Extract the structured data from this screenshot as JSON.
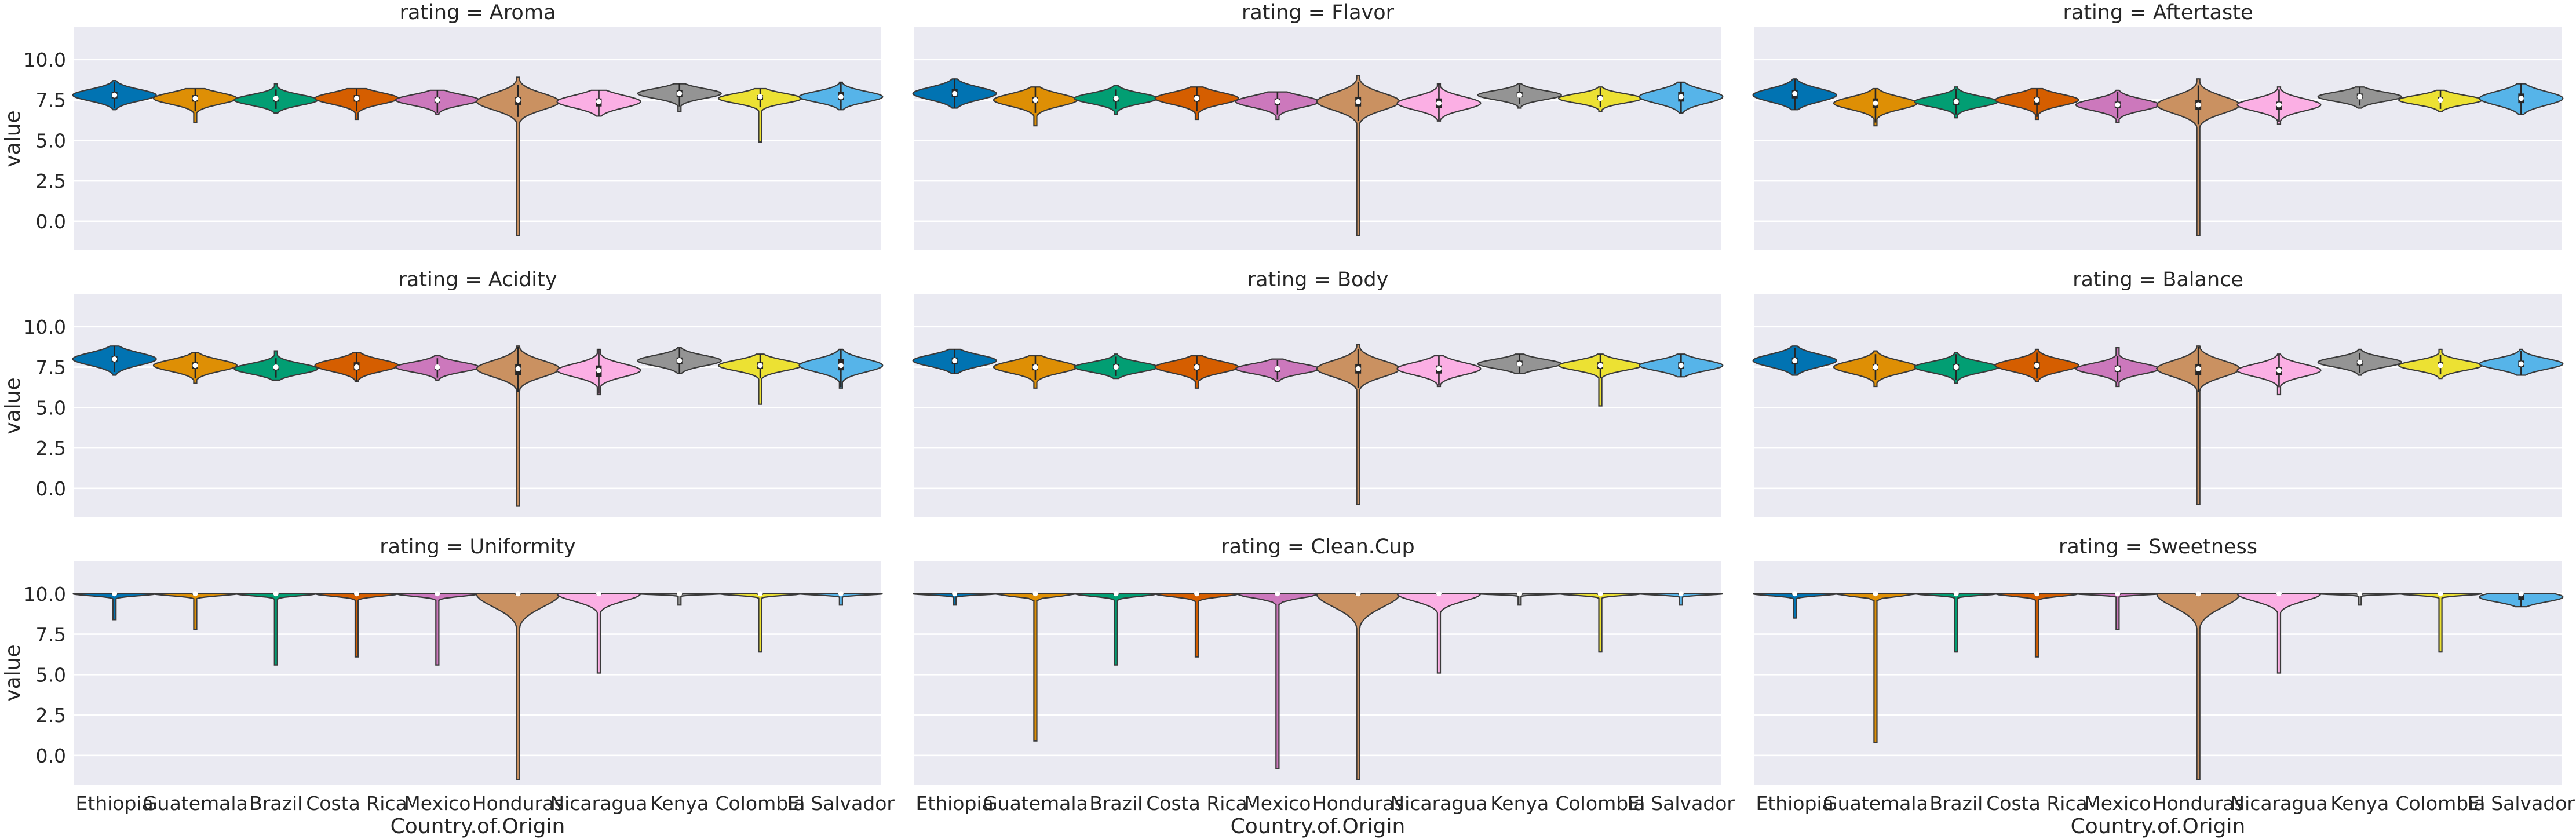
{
  "chart_data": {
    "type": "violin",
    "facet_label": "rating",
    "xlabel": "Country.of.Origin",
    "ylabel": "value",
    "ylim": [
      -1.8,
      12.0
    ],
    "yticks": [
      "0.0",
      "2.5",
      "5.0",
      "7.5",
      "10.0"
    ],
    "categories": [
      "Ethiopia",
      "Guatemala",
      "Brazil",
      "Costa Rica",
      "Mexico",
      "Honduras",
      "Nicaragua",
      "Kenya",
      "Colombia",
      "El Salvador"
    ],
    "colors": [
      "#0173b2",
      "#de8f05",
      "#029e73",
      "#d55e00",
      "#cc78bc",
      "#ca9161",
      "#fbafe4",
      "#949494",
      "#ece133",
      "#56b4e9"
    ],
    "panels": [
      {
        "title": "rating = Aroma",
        "violins": [
          {
            "min": 6.9,
            "max": 8.7,
            "q1": 7.6,
            "median": 7.8,
            "q3": 8.0,
            "center": 7.8,
            "spread": 0.35
          },
          {
            "min": 6.1,
            "max": 8.2,
            "q1": 7.4,
            "median": 7.6,
            "q3": 7.8,
            "center": 7.6,
            "spread": 0.35
          },
          {
            "min": 6.7,
            "max": 8.5,
            "q1": 7.4,
            "median": 7.6,
            "q3": 7.7,
            "center": 7.5,
            "spread": 0.32
          },
          {
            "min": 6.3,
            "max": 8.2,
            "q1": 7.4,
            "median": 7.6,
            "q3": 7.8,
            "center": 7.6,
            "spread": 0.35
          },
          {
            "min": 6.6,
            "max": 8.1,
            "q1": 7.3,
            "median": 7.5,
            "q3": 7.7,
            "center": 7.5,
            "spread": 0.32
          },
          {
            "min": -0.9,
            "max": 8.9,
            "q1": 7.2,
            "median": 7.5,
            "q3": 7.7,
            "center": 7.4,
            "spread": 0.5
          },
          {
            "min": 6.5,
            "max": 8.1,
            "q1": 7.1,
            "median": 7.4,
            "q3": 7.6,
            "center": 7.4,
            "spread": 0.38
          },
          {
            "min": 6.8,
            "max": 8.5,
            "q1": 7.7,
            "median": 7.9,
            "q3": 8.1,
            "center": 7.9,
            "spread": 0.3
          },
          {
            "min": 4.9,
            "max": 8.2,
            "q1": 7.5,
            "median": 7.7,
            "q3": 7.8,
            "center": 7.6,
            "spread": 0.3
          },
          {
            "min": 6.9,
            "max": 8.6,
            "q1": 7.5,
            "median": 7.7,
            "q3": 8.0,
            "center": 7.7,
            "spread": 0.33
          }
        ]
      },
      {
        "title": "rating = Flavor",
        "violins": [
          {
            "min": 7.0,
            "max": 8.8,
            "q1": 7.7,
            "median": 7.9,
            "q3": 8.2,
            "center": 7.9,
            "spread": 0.38
          },
          {
            "min": 5.9,
            "max": 8.3,
            "q1": 7.3,
            "median": 7.5,
            "q3": 7.7,
            "center": 7.5,
            "spread": 0.38
          },
          {
            "min": 6.6,
            "max": 8.4,
            "q1": 7.4,
            "median": 7.6,
            "q3": 7.7,
            "center": 7.6,
            "spread": 0.32
          },
          {
            "min": 6.3,
            "max": 8.3,
            "q1": 7.4,
            "median": 7.6,
            "q3": 7.8,
            "center": 7.6,
            "spread": 0.36
          },
          {
            "min": 6.3,
            "max": 8.0,
            "q1": 7.2,
            "median": 7.4,
            "q3": 7.6,
            "center": 7.4,
            "spread": 0.35
          },
          {
            "min": -0.9,
            "max": 9.0,
            "q1": 7.1,
            "median": 7.4,
            "q3": 7.7,
            "center": 7.4,
            "spread": 0.52
          },
          {
            "min": 6.2,
            "max": 8.5,
            "q1": 7.0,
            "median": 7.3,
            "q3": 7.6,
            "center": 7.3,
            "spread": 0.4
          },
          {
            "min": 7.0,
            "max": 8.5,
            "q1": 7.7,
            "median": 7.8,
            "q3": 8.0,
            "center": 7.8,
            "spread": 0.28
          },
          {
            "min": 6.8,
            "max": 8.3,
            "q1": 7.5,
            "median": 7.6,
            "q3": 7.8,
            "center": 7.6,
            "spread": 0.28
          },
          {
            "min": 6.7,
            "max": 8.6,
            "q1": 7.4,
            "median": 7.7,
            "q3": 8.0,
            "center": 7.7,
            "spread": 0.4
          }
        ]
      },
      {
        "title": "rating = Aftertaste",
        "violins": [
          {
            "min": 6.9,
            "max": 8.8,
            "q1": 7.6,
            "median": 7.9,
            "q3": 8.1,
            "center": 7.8,
            "spread": 0.4
          },
          {
            "min": 5.9,
            "max": 8.2,
            "q1": 7.0,
            "median": 7.3,
            "q3": 7.6,
            "center": 7.3,
            "spread": 0.38
          },
          {
            "min": 6.4,
            "max": 8.3,
            "q1": 7.2,
            "median": 7.4,
            "q3": 7.6,
            "center": 7.4,
            "spread": 0.32
          },
          {
            "min": 6.3,
            "max": 8.2,
            "q1": 7.2,
            "median": 7.5,
            "q3": 7.7,
            "center": 7.5,
            "spread": 0.35
          },
          {
            "min": 6.1,
            "max": 8.1,
            "q1": 7.0,
            "median": 7.2,
            "q3": 7.4,
            "center": 7.2,
            "spread": 0.35
          },
          {
            "min": -0.9,
            "max": 8.8,
            "q1": 6.9,
            "median": 7.2,
            "q3": 7.5,
            "center": 7.2,
            "spread": 0.52
          },
          {
            "min": 6.0,
            "max": 8.3,
            "q1": 6.9,
            "median": 7.2,
            "q3": 7.4,
            "center": 7.2,
            "spread": 0.38
          },
          {
            "min": 7.0,
            "max": 8.3,
            "q1": 7.6,
            "median": 7.7,
            "q3": 7.9,
            "center": 7.7,
            "spread": 0.28
          },
          {
            "min": 6.8,
            "max": 8.1,
            "q1": 7.4,
            "median": 7.5,
            "q3": 7.7,
            "center": 7.5,
            "spread": 0.28
          },
          {
            "min": 6.6,
            "max": 8.5,
            "q1": 7.3,
            "median": 7.6,
            "q3": 7.9,
            "center": 7.6,
            "spread": 0.42
          }
        ]
      },
      {
        "title": "rating = Acidity",
        "violins": [
          {
            "min": 7.0,
            "max": 8.8,
            "q1": 7.8,
            "median": 8.0,
            "q3": 8.2,
            "center": 8.0,
            "spread": 0.38
          },
          {
            "min": 6.5,
            "max": 8.4,
            "q1": 7.4,
            "median": 7.6,
            "q3": 7.8,
            "center": 7.6,
            "spread": 0.35
          },
          {
            "min": 6.7,
            "max": 8.5,
            "q1": 7.3,
            "median": 7.5,
            "q3": 7.6,
            "center": 7.4,
            "spread": 0.32
          },
          {
            "min": 6.6,
            "max": 8.4,
            "q1": 7.3,
            "median": 7.5,
            "q3": 7.8,
            "center": 7.6,
            "spread": 0.36
          },
          {
            "min": 6.7,
            "max": 8.2,
            "q1": 7.3,
            "median": 7.5,
            "q3": 7.6,
            "center": 7.5,
            "spread": 0.3
          },
          {
            "min": -1.1,
            "max": 8.8,
            "q1": 7.0,
            "median": 7.4,
            "q3": 7.7,
            "center": 7.4,
            "spread": 0.5
          },
          {
            "min": 5.8,
            "max": 8.6,
            "q1": 6.9,
            "median": 7.3,
            "q3": 7.6,
            "center": 7.3,
            "spread": 0.4
          },
          {
            "min": 7.1,
            "max": 8.7,
            "q1": 7.7,
            "median": 7.9,
            "q3": 8.1,
            "center": 7.9,
            "spread": 0.32
          },
          {
            "min": 5.2,
            "max": 8.3,
            "q1": 7.4,
            "median": 7.6,
            "q3": 7.8,
            "center": 7.6,
            "spread": 0.32
          },
          {
            "min": 6.2,
            "max": 8.6,
            "q1": 7.3,
            "median": 7.6,
            "q3": 8.0,
            "center": 7.6,
            "spread": 0.4
          }
        ]
      },
      {
        "title": "rating = Body",
        "violins": [
          {
            "min": 7.1,
            "max": 8.6,
            "q1": 7.7,
            "median": 7.9,
            "q3": 8.1,
            "center": 7.9,
            "spread": 0.35
          },
          {
            "min": 6.2,
            "max": 8.2,
            "q1": 7.3,
            "median": 7.5,
            "q3": 7.7,
            "center": 7.5,
            "spread": 0.36
          },
          {
            "min": 6.8,
            "max": 8.3,
            "q1": 7.4,
            "median": 7.5,
            "q3": 7.7,
            "center": 7.5,
            "spread": 0.3
          },
          {
            "min": 6.2,
            "max": 8.2,
            "q1": 7.3,
            "median": 7.5,
            "q3": 7.7,
            "center": 7.5,
            "spread": 0.35
          },
          {
            "min": 6.6,
            "max": 8.0,
            "q1": 7.2,
            "median": 7.4,
            "q3": 7.5,
            "center": 7.4,
            "spread": 0.3
          },
          {
            "min": -1.0,
            "max": 8.9,
            "q1": 7.1,
            "median": 7.4,
            "q3": 7.7,
            "center": 7.4,
            "spread": 0.5
          },
          {
            "min": 6.3,
            "max": 8.2,
            "q1": 7.1,
            "median": 7.4,
            "q3": 7.6,
            "center": 7.4,
            "spread": 0.38
          },
          {
            "min": 7.1,
            "max": 8.3,
            "q1": 7.6,
            "median": 7.7,
            "q3": 7.9,
            "center": 7.7,
            "spread": 0.28
          },
          {
            "min": 5.1,
            "max": 8.3,
            "q1": 7.4,
            "median": 7.6,
            "q3": 7.8,
            "center": 7.6,
            "spread": 0.3
          },
          {
            "min": 6.9,
            "max": 8.3,
            "q1": 7.4,
            "median": 7.6,
            "q3": 7.8,
            "center": 7.6,
            "spread": 0.32
          }
        ]
      },
      {
        "title": "rating = Balance",
        "violins": [
          {
            "min": 7.0,
            "max": 8.8,
            "q1": 7.7,
            "median": 7.9,
            "q3": 8.1,
            "center": 7.9,
            "spread": 0.38
          },
          {
            "min": 6.3,
            "max": 8.5,
            "q1": 7.3,
            "median": 7.5,
            "q3": 7.7,
            "center": 7.5,
            "spread": 0.38
          },
          {
            "min": 6.5,
            "max": 8.4,
            "q1": 7.3,
            "median": 7.5,
            "q3": 7.7,
            "center": 7.5,
            "spread": 0.33
          },
          {
            "min": 6.6,
            "max": 8.6,
            "q1": 7.4,
            "median": 7.6,
            "q3": 7.8,
            "center": 7.6,
            "spread": 0.36
          },
          {
            "min": 6.3,
            "max": 8.7,
            "q1": 7.2,
            "median": 7.4,
            "q3": 7.6,
            "center": 7.4,
            "spread": 0.33
          },
          {
            "min": -1.0,
            "max": 8.8,
            "q1": 7.0,
            "median": 7.4,
            "q3": 7.7,
            "center": 7.4,
            "spread": 0.5
          },
          {
            "min": 5.8,
            "max": 8.3,
            "q1": 7.0,
            "median": 7.3,
            "q3": 7.5,
            "center": 7.3,
            "spread": 0.38
          },
          {
            "min": 7.0,
            "max": 8.6,
            "q1": 7.6,
            "median": 7.8,
            "q3": 7.9,
            "center": 7.8,
            "spread": 0.3
          },
          {
            "min": 6.8,
            "max": 8.6,
            "q1": 7.5,
            "median": 7.6,
            "q3": 7.8,
            "center": 7.6,
            "spread": 0.3
          },
          {
            "min": 7.0,
            "max": 8.6,
            "q1": 7.5,
            "median": 7.7,
            "q3": 7.9,
            "center": 7.7,
            "spread": 0.33
          }
        ]
      },
      {
        "title": "rating = Uniformity",
        "violins": [
          {
            "min": 8.4,
            "max": 10.0,
            "q1": 10.0,
            "median": 10.0,
            "q3": 10.0,
            "center": 10.0,
            "spread": 0.12
          },
          {
            "min": 7.8,
            "max": 10.0,
            "q1": 10.0,
            "median": 10.0,
            "q3": 10.0,
            "center": 10.0,
            "spread": 0.12
          },
          {
            "min": 5.6,
            "max": 10.0,
            "q1": 10.0,
            "median": 10.0,
            "q3": 10.0,
            "center": 10.0,
            "spread": 0.12
          },
          {
            "min": 6.1,
            "max": 10.0,
            "q1": 10.0,
            "median": 10.0,
            "q3": 10.0,
            "center": 10.0,
            "spread": 0.15
          },
          {
            "min": 5.6,
            "max": 10.0,
            "q1": 10.0,
            "median": 10.0,
            "q3": 10.0,
            "center": 10.0,
            "spread": 0.15
          },
          {
            "min": -1.5,
            "max": 10.0,
            "q1": 10.0,
            "median": 10.0,
            "q3": 10.0,
            "center": 10.0,
            "spread": 0.8
          },
          {
            "min": 5.1,
            "max": 10.0,
            "q1": 10.0,
            "median": 10.0,
            "q3": 10.0,
            "center": 10.0,
            "spread": 0.45
          },
          {
            "min": 9.3,
            "max": 10.0,
            "q1": 10.0,
            "median": 10.0,
            "q3": 10.0,
            "center": 10.0,
            "spread": 0.06
          },
          {
            "min": 6.4,
            "max": 10.0,
            "q1": 10.0,
            "median": 10.0,
            "q3": 10.0,
            "center": 10.0,
            "spread": 0.1
          },
          {
            "min": 9.3,
            "max": 10.0,
            "q1": 10.0,
            "median": 10.0,
            "q3": 10.0,
            "center": 10.0,
            "spread": 0.08
          }
        ]
      },
      {
        "title": "rating = Clean.Cup",
        "violins": [
          {
            "min": 9.3,
            "max": 10.0,
            "q1": 10.0,
            "median": 10.0,
            "q3": 10.0,
            "center": 10.0,
            "spread": 0.08
          },
          {
            "min": 0.9,
            "max": 10.0,
            "q1": 10.0,
            "median": 10.0,
            "q3": 10.0,
            "center": 10.0,
            "spread": 0.15
          },
          {
            "min": 5.6,
            "max": 10.0,
            "q1": 10.0,
            "median": 10.0,
            "q3": 10.0,
            "center": 10.0,
            "spread": 0.15
          },
          {
            "min": 6.1,
            "max": 10.0,
            "q1": 10.0,
            "median": 10.0,
            "q3": 10.0,
            "center": 10.0,
            "spread": 0.18
          },
          {
            "min": -0.8,
            "max": 10.0,
            "q1": 10.0,
            "median": 10.0,
            "q3": 10.0,
            "center": 10.0,
            "spread": 0.25
          },
          {
            "min": -1.5,
            "max": 10.0,
            "q1": 10.0,
            "median": 10.0,
            "q3": 10.0,
            "center": 10.0,
            "spread": 0.8
          },
          {
            "min": 5.1,
            "max": 10.0,
            "q1": 10.0,
            "median": 10.0,
            "q3": 10.0,
            "center": 10.0,
            "spread": 0.45
          },
          {
            "min": 9.3,
            "max": 10.0,
            "q1": 10.0,
            "median": 10.0,
            "q3": 10.0,
            "center": 10.0,
            "spread": 0.06
          },
          {
            "min": 6.4,
            "max": 10.0,
            "q1": 10.0,
            "median": 10.0,
            "q3": 10.0,
            "center": 10.0,
            "spread": 0.1
          },
          {
            "min": 9.3,
            "max": 10.0,
            "q1": 10.0,
            "median": 10.0,
            "q3": 10.0,
            "center": 10.0,
            "spread": 0.08
          }
        ]
      },
      {
        "title": "rating = Sweetness",
        "violins": [
          {
            "min": 8.5,
            "max": 10.0,
            "q1": 10.0,
            "median": 10.0,
            "q3": 10.0,
            "center": 10.0,
            "spread": 0.12
          },
          {
            "min": 0.8,
            "max": 10.0,
            "q1": 10.0,
            "median": 10.0,
            "q3": 10.0,
            "center": 10.0,
            "spread": 0.15
          },
          {
            "min": 6.4,
            "max": 10.0,
            "q1": 10.0,
            "median": 10.0,
            "q3": 10.0,
            "center": 10.0,
            "spread": 0.1
          },
          {
            "min": 6.1,
            "max": 10.0,
            "q1": 10.0,
            "median": 10.0,
            "q3": 10.0,
            "center": 10.0,
            "spread": 0.15
          },
          {
            "min": 7.8,
            "max": 10.0,
            "q1": 10.0,
            "median": 10.0,
            "q3": 10.0,
            "center": 10.0,
            "spread": 0.08
          },
          {
            "min": -1.5,
            "max": 10.0,
            "q1": 10.0,
            "median": 10.0,
            "q3": 10.0,
            "center": 10.0,
            "spread": 0.8
          },
          {
            "min": 5.1,
            "max": 10.0,
            "q1": 10.0,
            "median": 10.0,
            "q3": 10.0,
            "center": 10.0,
            "spread": 0.45
          },
          {
            "min": 9.3,
            "max": 10.0,
            "q1": 10.0,
            "median": 10.0,
            "q3": 10.0,
            "center": 10.0,
            "spread": 0.06
          },
          {
            "min": 6.4,
            "max": 10.0,
            "q1": 10.0,
            "median": 10.0,
            "q3": 10.0,
            "center": 10.0,
            "spread": 0.1
          },
          {
            "min": 9.2,
            "max": 10.0,
            "q1": 9.6,
            "median": 10.0,
            "q3": 10.0,
            "center": 9.8,
            "spread": 0.3
          }
        ]
      }
    ]
  }
}
